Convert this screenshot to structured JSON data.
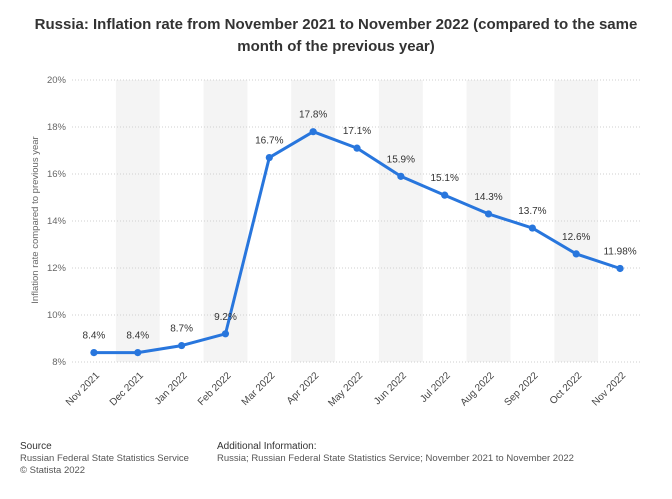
{
  "title": "Russia: Inflation rate from November 2021 to November 2022 (compared to the same month of the previous year)",
  "chart_data": {
    "type": "line",
    "title": "Russia: Inflation rate from November 2021 to November 2022 (compared to the same month of the previous year)",
    "xlabel": "",
    "ylabel": "Inflation rate compared to previous year",
    "categories": [
      "Nov 2021",
      "Dec 2021",
      "Jan 2022",
      "Feb 2022",
      "Mar 2022",
      "Apr 2022",
      "May 2022",
      "Jun 2022",
      "Jul 2022",
      "Aug 2022",
      "Sep 2022",
      "Oct 2022",
      "Nov 2022"
    ],
    "values": [
      8.4,
      8.4,
      8.7,
      9.2,
      16.7,
      17.8,
      17.1,
      15.9,
      15.1,
      14.3,
      13.7,
      12.6,
      11.98
    ],
    "data_labels": [
      "8.4%",
      "8.4%",
      "8.7%",
      "9.2%",
      "16.7%",
      "17.8%",
      "17.1%",
      "15.9%",
      "15.1%",
      "14.3%",
      "13.7%",
      "12.6%",
      "11.98%"
    ],
    "ylim": [
      8,
      20
    ],
    "yticks": [
      "8%",
      "10%",
      "12%",
      "14%",
      "16%",
      "18%",
      "20%"
    ],
    "grid": true,
    "line_color": "#2876dd"
  },
  "footer": {
    "source_heading": "Source",
    "source_lines": [
      "Russian Federal State Statistics Service",
      "© Statista 2022"
    ],
    "info_heading": "Additional Information:",
    "info_text": "Russia; Russian Federal State Statistics Service; November 2021 to November 2022"
  }
}
